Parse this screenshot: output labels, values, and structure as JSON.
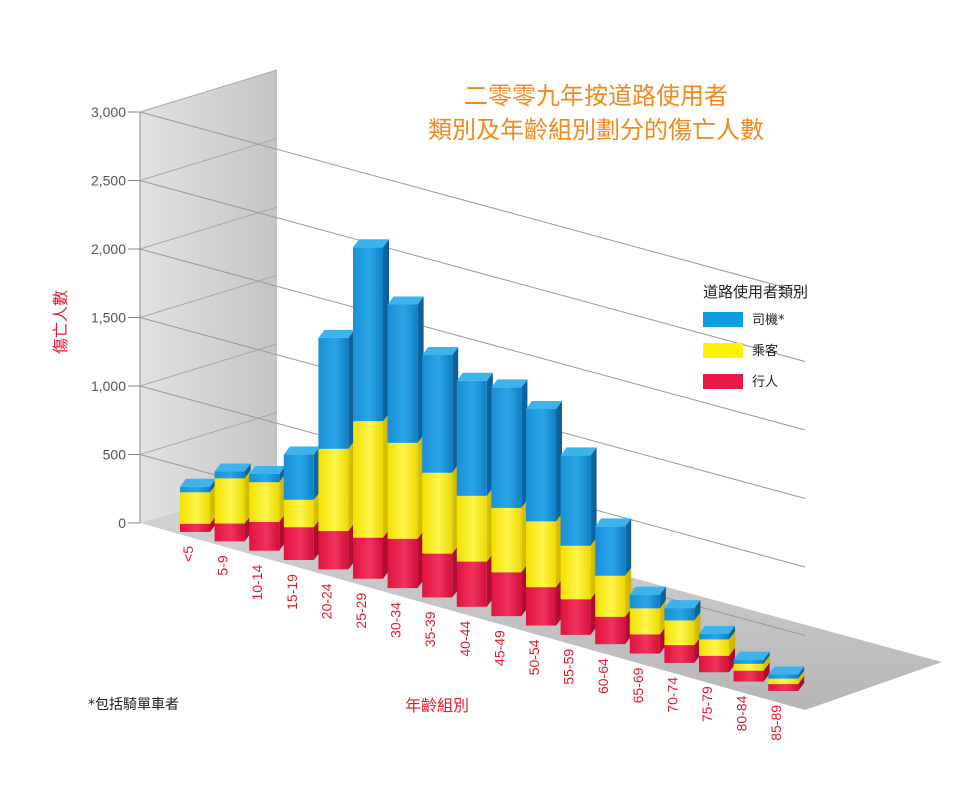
{
  "chart_data": {
    "type": "bar",
    "stacked": true,
    "three_d": true,
    "title": [
      "二零零九年按道路使用者",
      "類別及年齡組別劃分的傷亡人數"
    ],
    "ylabel": "傷亡人數",
    "xlabel": "年齡組別",
    "ylim": [
      0,
      3000
    ],
    "yticks": [
      "0",
      "500",
      "1,000",
      "1,500",
      "2,000",
      "2,500",
      "3,000"
    ],
    "ytick_values": [
      0,
      500,
      1000,
      1500,
      2000,
      2500,
      3000
    ],
    "categories": [
      "<5",
      "5-9",
      "10-14",
      "15-19",
      "20-24",
      "25-29",
      "30-34",
      "35-39",
      "40-44",
      "45-49",
      "50-54",
      "55-59",
      "60-64",
      "65-69",
      "70-74",
      "75-79",
      "80-84",
      "85-89"
    ],
    "series": [
      {
        "name": "行人",
        "color": "#e8194a",
        "values": [
          60,
          130,
          210,
          240,
          280,
          300,
          360,
          320,
          330,
          320,
          280,
          260,
          200,
          140,
          130,
          120,
          80,
          50
        ]
      },
      {
        "name": "乘客",
        "color": "#fff200",
        "values": [
          230,
          330,
          290,
          200,
          600,
          850,
          700,
          590,
          480,
          470,
          480,
          390,
          300,
          190,
          180,
          120,
          50,
          40
        ]
      },
      {
        "name": "司機*",
        "color": "#0b9be0",
        "values": [
          40,
          50,
          60,
          330,
          810,
          1270,
          1010,
          860,
          840,
          880,
          820,
          660,
          360,
          100,
          90,
          40,
          30,
          30
        ]
      }
    ],
    "legend": {
      "title": "道路使用者類別",
      "position": "right"
    },
    "footnote": "*包括騎單車者",
    "grid": true
  }
}
